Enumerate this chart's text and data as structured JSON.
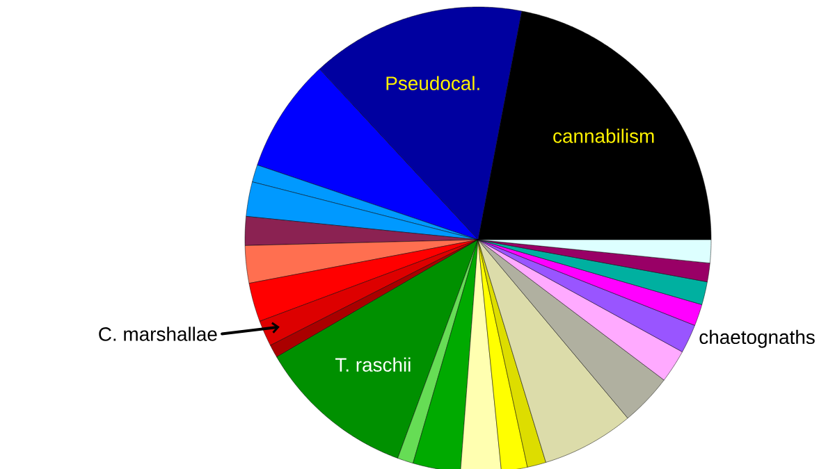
{
  "chart_data": {
    "type": "pie",
    "categories": [
      "cannabilism",
      "Pseudocal.",
      null,
      null,
      null,
      null,
      null,
      null,
      "C. marshallae",
      null,
      "T. raschii",
      null,
      null,
      null,
      null,
      null,
      null,
      null,
      null,
      "chaetognaths",
      null,
      null,
      null,
      null
    ],
    "values": [
      22.0,
      14.9,
      7.9,
      1.2,
      2.4,
      2.0,
      2.6,
      2.7,
      1.8,
      0.9,
      11.0,
      1.1,
      3.3,
      2.8,
      1.8,
      1.3,
      6.4,
      3.6,
      2.3,
      2.0,
      1.5,
      1.6,
      1.3,
      1.6
    ],
    "colors": [
      "#000000",
      "#0000a0",
      "#0000ff",
      "#0099ff",
      "#0099ff",
      "#8b2252",
      "#ff6f50",
      "#ff0000",
      "#dd0000",
      "#aa0000",
      "#009000",
      "#66dd55",
      "#00aa00",
      "#ffffb0",
      "#ffff00",
      "#dddd00",
      "#dcdcaa",
      "#b0b0a0",
      "#ffaaff",
      "#9955ff",
      "#ff00ff",
      "#00b0a0",
      "#990066",
      "#ddffff"
    ]
  }
}
